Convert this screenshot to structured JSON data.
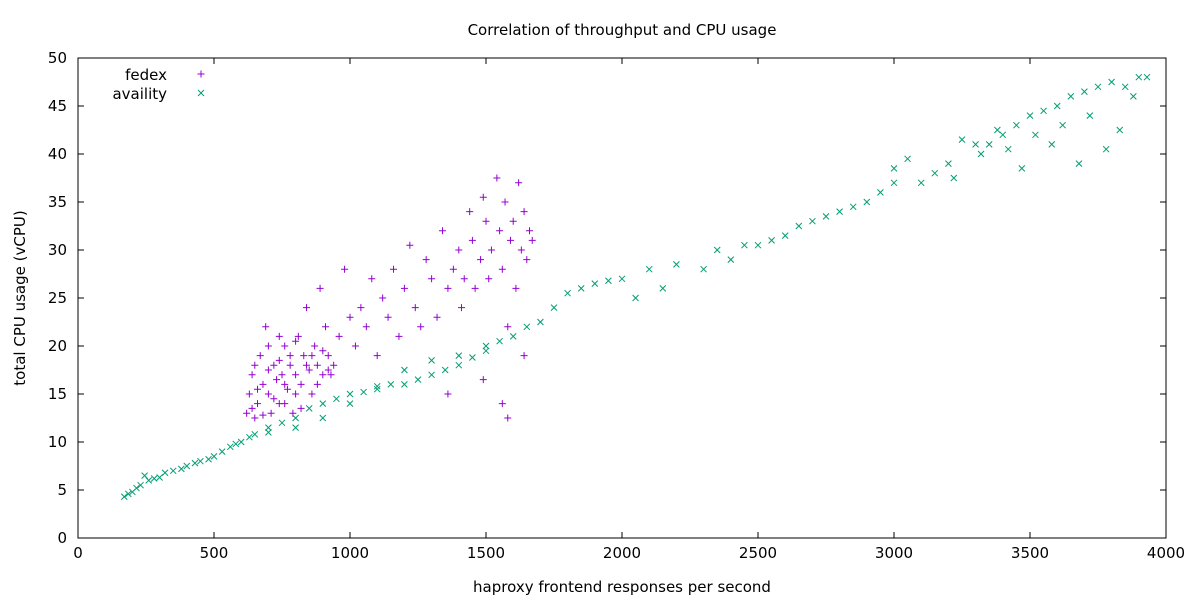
{
  "chart_data": {
    "type": "scatter",
    "title": "Correlation of throughput and CPU usage",
    "xlabel": "haproxy frontend responses per second",
    "ylabel": "total CPU usage (vCPU)",
    "xlim": [
      0,
      4000
    ],
    "ylim": [
      0,
      50
    ],
    "xticks": [
      0,
      500,
      1000,
      1500,
      2000,
      2500,
      3000,
      3500,
      4000
    ],
    "yticks": [
      0,
      5,
      10,
      15,
      20,
      25,
      30,
      35,
      40,
      45,
      50
    ],
    "grid": false,
    "legend_position": "top-left",
    "series": [
      {
        "name": "fedex",
        "marker": "plus",
        "color": "#9400d3",
        "points": [
          [
            620,
            13
          ],
          [
            630,
            15
          ],
          [
            640,
            17
          ],
          [
            650,
            12.5
          ],
          [
            660,
            14
          ],
          [
            670,
            19
          ],
          [
            680,
            16
          ],
          [
            690,
            22
          ],
          [
            700,
            15
          ],
          [
            710,
            13
          ],
          [
            720,
            18
          ],
          [
            730,
            16.5
          ],
          [
            740,
            14
          ],
          [
            750,
            17
          ],
          [
            760,
            20
          ],
          [
            770,
            15.5
          ],
          [
            780,
            18
          ],
          [
            790,
            13
          ],
          [
            800,
            17
          ],
          [
            810,
            21
          ],
          [
            820,
            16
          ],
          [
            830,
            19
          ],
          [
            840,
            24
          ],
          [
            850,
            17.5
          ],
          [
            860,
            15
          ],
          [
            870,
            20
          ],
          [
            880,
            18
          ],
          [
            890,
            26
          ],
          [
            900,
            17
          ],
          [
            910,
            22
          ],
          [
            920,
            19
          ],
          [
            930,
            17
          ],
          [
            940,
            18
          ],
          [
            960,
            21
          ],
          [
            980,
            28
          ],
          [
            1000,
            23
          ],
          [
            1020,
            20
          ],
          [
            1040,
            24
          ],
          [
            1060,
            22
          ],
          [
            1080,
            27
          ],
          [
            1100,
            19
          ],
          [
            1120,
            25
          ],
          [
            1140,
            23
          ],
          [
            1160,
            28
          ],
          [
            1180,
            21
          ],
          [
            1200,
            26
          ],
          [
            1220,
            30.5
          ],
          [
            1240,
            24
          ],
          [
            1260,
            22
          ],
          [
            1280,
            29
          ],
          [
            1300,
            27
          ],
          [
            1320,
            23
          ],
          [
            1340,
            32
          ],
          [
            1360,
            26
          ],
          [
            1380,
            28
          ],
          [
            1400,
            30
          ],
          [
            1410,
            24
          ],
          [
            1420,
            27
          ],
          [
            1440,
            34
          ],
          [
            1450,
            31
          ],
          [
            1460,
            26
          ],
          [
            1480,
            29
          ],
          [
            1490,
            35.5
          ],
          [
            1500,
            33
          ],
          [
            1510,
            27
          ],
          [
            1520,
            30
          ],
          [
            1540,
            37.5
          ],
          [
            1550,
            32
          ],
          [
            1560,
            28
          ],
          [
            1570,
            35
          ],
          [
            1580,
            22
          ],
          [
            1590,
            31
          ],
          [
            1600,
            33
          ],
          [
            1610,
            26
          ],
          [
            1620,
            37
          ],
          [
            1630,
            30
          ],
          [
            1640,
            34
          ],
          [
            1650,
            29
          ],
          [
            1660,
            32
          ],
          [
            1670,
            31
          ],
          [
            1560,
            14
          ],
          [
            1580,
            12.5
          ],
          [
            1490,
            16.5
          ],
          [
            1360,
            15
          ],
          [
            1640,
            19
          ],
          [
            650,
            18
          ],
          [
            700,
            20
          ],
          [
            760,
            14
          ],
          [
            820,
            13.5
          ],
          [
            880,
            16
          ],
          [
            700,
            17.5
          ],
          [
            740,
            21
          ],
          [
            780,
            19
          ],
          [
            840,
            18
          ],
          [
            900,
            19.5
          ],
          [
            640,
            13.5
          ],
          [
            680,
            12.8
          ],
          [
            720,
            14.5
          ],
          [
            760,
            16
          ],
          [
            800,
            15
          ],
          [
            860,
            19
          ],
          [
            920,
            17.5
          ],
          [
            660,
            15.5
          ],
          [
            740,
            18.5
          ],
          [
            800,
            20.5
          ]
        ]
      },
      {
        "name": "availity",
        "marker": "cross",
        "color": "#009e73",
        "points": [
          [
            170,
            4.3
          ],
          [
            185,
            4.6
          ],
          [
            200,
            4.8
          ],
          [
            215,
            5.2
          ],
          [
            230,
            5.5
          ],
          [
            245,
            6.5
          ],
          [
            260,
            6
          ],
          [
            280,
            6.2
          ],
          [
            300,
            6.3
          ],
          [
            320,
            6.8
          ],
          [
            350,
            7
          ],
          [
            380,
            7.2
          ],
          [
            400,
            7.5
          ],
          [
            430,
            7.8
          ],
          [
            450,
            8
          ],
          [
            480,
            8.2
          ],
          [
            500,
            8.5
          ],
          [
            530,
            9
          ],
          [
            560,
            9.5
          ],
          [
            580,
            9.8
          ],
          [
            600,
            10
          ],
          [
            630,
            10.5
          ],
          [
            650,
            10.8
          ],
          [
            700,
            11.5
          ],
          [
            700,
            11
          ],
          [
            750,
            12
          ],
          [
            800,
            12.5
          ],
          [
            800,
            11.5
          ],
          [
            850,
            13.5
          ],
          [
            900,
            14
          ],
          [
            900,
            12.5
          ],
          [
            950,
            14.5
          ],
          [
            1000,
            15
          ],
          [
            1000,
            14
          ],
          [
            1050,
            15.2
          ],
          [
            1100,
            15.5
          ],
          [
            1100,
            15.8
          ],
          [
            1150,
            16
          ],
          [
            1200,
            16
          ],
          [
            1200,
            17.5
          ],
          [
            1250,
            16.5
          ],
          [
            1300,
            17
          ],
          [
            1300,
            18.5
          ],
          [
            1350,
            17.5
          ],
          [
            1400,
            18
          ],
          [
            1400,
            19
          ],
          [
            1450,
            18.8
          ],
          [
            1500,
            19.5
          ],
          [
            1500,
            20
          ],
          [
            1550,
            20.5
          ],
          [
            1600,
            21
          ],
          [
            1650,
            22
          ],
          [
            1700,
            22.5
          ],
          [
            1750,
            24
          ],
          [
            1800,
            25.5
          ],
          [
            1850,
            26
          ],
          [
            1900,
            26.5
          ],
          [
            1950,
            26.8
          ],
          [
            2000,
            27
          ],
          [
            2050,
            25
          ],
          [
            2100,
            28
          ],
          [
            2150,
            26
          ],
          [
            2200,
            28.5
          ],
          [
            2300,
            28
          ],
          [
            2350,
            30
          ],
          [
            2400,
            29
          ],
          [
            2450,
            30.5
          ],
          [
            2500,
            30.5
          ],
          [
            2550,
            31
          ],
          [
            2600,
            31.5
          ],
          [
            2650,
            32.5
          ],
          [
            2700,
            33
          ],
          [
            2750,
            33.5
          ],
          [
            2800,
            34
          ],
          [
            2850,
            34.5
          ],
          [
            2900,
            35
          ],
          [
            2950,
            36
          ],
          [
            3000,
            37
          ],
          [
            3000,
            38.5
          ],
          [
            3050,
            39.5
          ],
          [
            3100,
            37
          ],
          [
            3150,
            38
          ],
          [
            3200,
            39
          ],
          [
            3220,
            37.5
          ],
          [
            3250,
            41.5
          ],
          [
            3300,
            41
          ],
          [
            3320,
            40
          ],
          [
            3350,
            41
          ],
          [
            3380,
            42.5
          ],
          [
            3400,
            42
          ],
          [
            3420,
            40.5
          ],
          [
            3450,
            43
          ],
          [
            3470,
            38.5
          ],
          [
            3500,
            44
          ],
          [
            3520,
            42
          ],
          [
            3550,
            44.5
          ],
          [
            3580,
            41
          ],
          [
            3600,
            45
          ],
          [
            3620,
            43
          ],
          [
            3650,
            46
          ],
          [
            3680,
            39
          ],
          [
            3700,
            46.5
          ],
          [
            3720,
            44
          ],
          [
            3750,
            47
          ],
          [
            3780,
            40.5
          ],
          [
            3800,
            47.5
          ],
          [
            3830,
            42.5
          ],
          [
            3850,
            47
          ],
          [
            3880,
            46
          ],
          [
            3900,
            48
          ],
          [
            3930,
            48
          ]
        ]
      }
    ]
  }
}
